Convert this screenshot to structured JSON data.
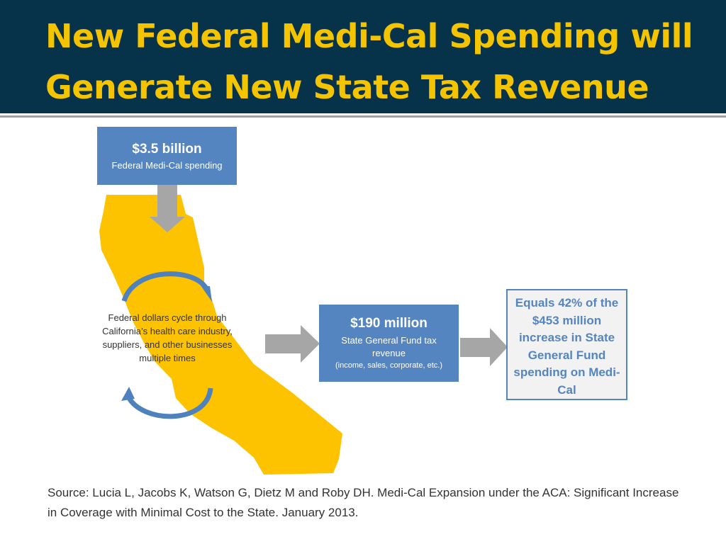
{
  "slide": {
    "title_line1": "New Federal Medi-Cal Spending will",
    "title_line2": "Generate New State Tax Revenue"
  },
  "federal_box": {
    "amount": "$3.5 billion",
    "label": "Federal Medi-Cal spending"
  },
  "cycle": {
    "text": "Federal dollars cycle through California’s health care industry, suppliers, and other businesses multiple times"
  },
  "revenue_box": {
    "amount": "$190 million",
    "label": "State General Fund tax revenue",
    "detail": "(income, sales, corporate, etc.)"
  },
  "result_box": {
    "text": "Equals 42% of the $453 million increase in State General Fund spending on Medi-Cal"
  },
  "source": {
    "text": "Source: Lucia L, Jacobs K, Watson G, Dietz M and Roby DH. Medi-Cal Expansion under the ACA: Significant Increase in Coverage with Minimal Cost to the State. January 2013."
  },
  "colors": {
    "header_bg": "#07334a",
    "title": "#f5c400",
    "box_blue": "#5585c1",
    "state_fill": "#fdc300",
    "arrow_gray": "#a6a6a6"
  },
  "icons": [
    "california-map",
    "down-arrow-icon",
    "right-arrow-icon",
    "cycle-arrow-icon"
  ]
}
